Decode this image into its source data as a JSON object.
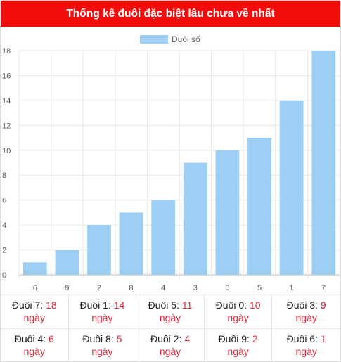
{
  "header": {
    "title": "Thống kê đuôi đặc biệt lâu chưa về nhất"
  },
  "colors": {
    "header_bg": "#f20d0d",
    "bar": "#9ccff3",
    "accent": "#e4283a"
  },
  "chart_data": {
    "type": "bar",
    "title": "",
    "categories": [
      "6",
      "9",
      "2",
      "8",
      "4",
      "3",
      "0",
      "5",
      "1",
      "7"
    ],
    "series": [
      {
        "name": "Đuôi số",
        "values": [
          1,
          2,
          4,
          5,
          6,
          9,
          10,
          11,
          14,
          18
        ]
      }
    ],
    "xlabel": "",
    "ylabel": "",
    "ylim": [
      0,
      18
    ],
    "yticks": [
      "0",
      "2",
      "4",
      "6",
      "8",
      "10",
      "12",
      "14",
      "16",
      "18"
    ],
    "grid": true,
    "legend": "top-center"
  },
  "stats": {
    "unit": "ngày",
    "items": [
      {
        "label": "Đuôi 7:",
        "value": "18"
      },
      {
        "label": "Đuôi 1:",
        "value": "14"
      },
      {
        "label": "Đuôi 5:",
        "value": "11"
      },
      {
        "label": "Đuôi 0:",
        "value": "10"
      },
      {
        "label": "Đuôi 3:",
        "value": "9"
      },
      {
        "label": "Đuôi 4:",
        "value": "6"
      },
      {
        "label": "Đuôi 8:",
        "value": "5"
      },
      {
        "label": "Đuôi 2:",
        "value": "4"
      },
      {
        "label": "Đuôi 9:",
        "value": "2"
      },
      {
        "label": "Đuôi 6:",
        "value": "1"
      }
    ]
  }
}
